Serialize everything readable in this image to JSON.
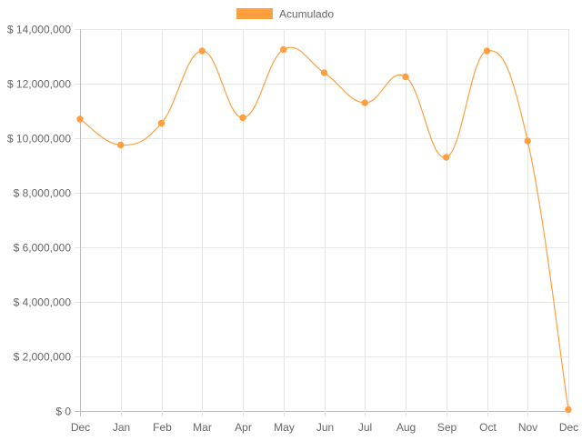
{
  "chart_data": {
    "type": "line",
    "legend": {
      "position": "top",
      "entries": [
        "Acumulado"
      ]
    },
    "categories": [
      "Dec",
      "Jan",
      "Feb",
      "Mar",
      "Apr",
      "May",
      "Jun",
      "Jul",
      "Aug",
      "Sep",
      "Oct",
      "Nov",
      "Dec"
    ],
    "series": [
      {
        "name": "Acumulado",
        "color": "#ff9f40",
        "values": [
          10700000,
          9750000,
          10550000,
          13200000,
          10750000,
          13250000,
          12400000,
          11300000,
          12250000,
          9300000,
          13200000,
          9900000,
          50000
        ]
      }
    ],
    "y_ticks": [
      0,
      2000000,
      4000000,
      6000000,
      8000000,
      10000000,
      12000000,
      14000000
    ],
    "y_tick_labels": [
      "$ 0",
      "$ 2,000,000",
      "$ 4,000,000",
      "$ 6,000,000",
      "$ 8,000,000",
      "$ 10,000,000",
      "$ 12,000,000",
      "$ 14,000,000"
    ],
    "ylim": [
      0,
      14000000
    ],
    "grid": true,
    "title": "",
    "xlabel": "",
    "ylabel": ""
  }
}
